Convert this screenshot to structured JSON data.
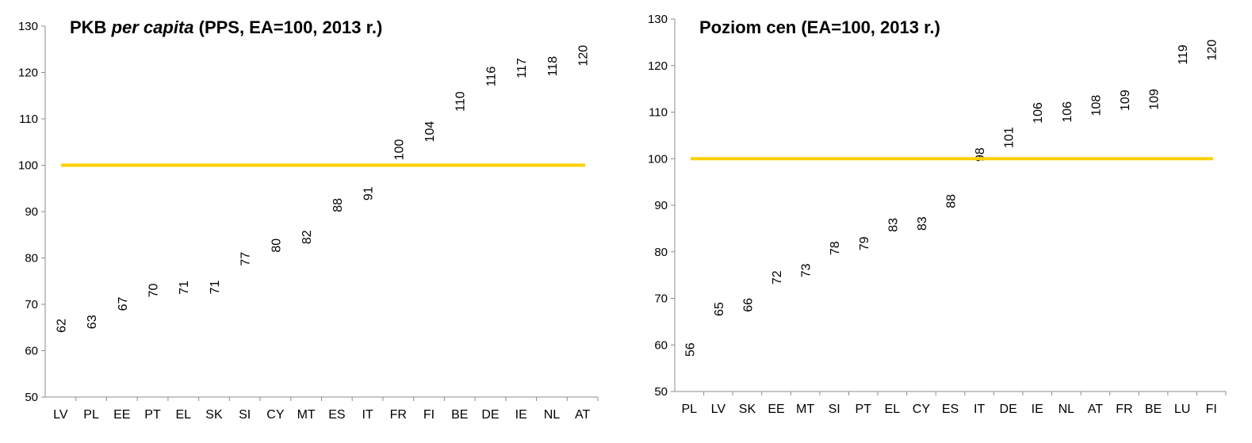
{
  "chart_data": [
    {
      "type": "bar",
      "title_parts": [
        "PKB ",
        "per capita",
        " (PPS, EA=100, 2013 r.)"
      ],
      "categories": [
        "LV",
        "PL",
        "EE",
        "PT",
        "EL",
        "SK",
        "SI",
        "CY",
        "MT",
        "ES",
        "IT",
        "FR",
        "FI",
        "BE",
        "DE",
        "IE",
        "NL",
        "AT"
      ],
      "values": [
        62.5,
        63.3,
        67.2,
        70.1,
        70.7,
        70.8,
        76.9,
        79.8,
        81.6,
        88.5,
        91.0,
        99.7,
        103.6,
        110.2,
        115.6,
        117.4,
        117.8,
        120.0
      ],
      "value_labels": [
        "62",
        "63",
        "67",
        "70",
        "71",
        "71",
        "77",
        "80",
        "82",
        "88",
        "91",
        "100",
        "104",
        "110",
        "116",
        "117",
        "118",
        "120"
      ],
      "highlight": "PL",
      "reference_line": 100,
      "ylim": [
        50,
        130
      ],
      "yticks": [
        "50",
        "60",
        "70",
        "80",
        "90",
        "100",
        "110",
        "120",
        "130"
      ],
      "colors": {
        "bar": "#117a65",
        "highlight": "#c00000",
        "reference": "#ffd000"
      }
    },
    {
      "type": "bar",
      "title_parts": [
        "Poziom cen (EA=100, 2013 r.)"
      ],
      "categories": [
        "PL",
        "LV",
        "SK",
        "EE",
        "MT",
        "SI",
        "PT",
        "EL",
        "CY",
        "ES",
        "IT",
        "DE",
        "IE",
        "NL",
        "AT",
        "FR",
        "BE",
        "LU",
        "FI"
      ],
      "values": [
        56.1,
        64.8,
        65.7,
        71.6,
        73.1,
        77.9,
        78.9,
        82.9,
        83.2,
        88.0,
        98.0,
        100.9,
        106.2,
        106.4,
        107.8,
        108.9,
        109.1,
        118.8,
        119.7
      ],
      "value_labels": [
        "56",
        "65",
        "66",
        "72",
        "73",
        "78",
        "79",
        "83",
        "83",
        "88",
        "98",
        "101",
        "106",
        "106",
        "108",
        "109",
        "109",
        "119",
        "120"
      ],
      "highlight": "PL",
      "reference_line": 100,
      "ylim": [
        50,
        130
      ],
      "yticks": [
        "50",
        "60",
        "70",
        "80",
        "90",
        "100",
        "110",
        "120",
        "130"
      ],
      "colors": {
        "bar": "#117a65",
        "highlight": "#c00000",
        "reference": "#ffd000"
      }
    }
  ]
}
